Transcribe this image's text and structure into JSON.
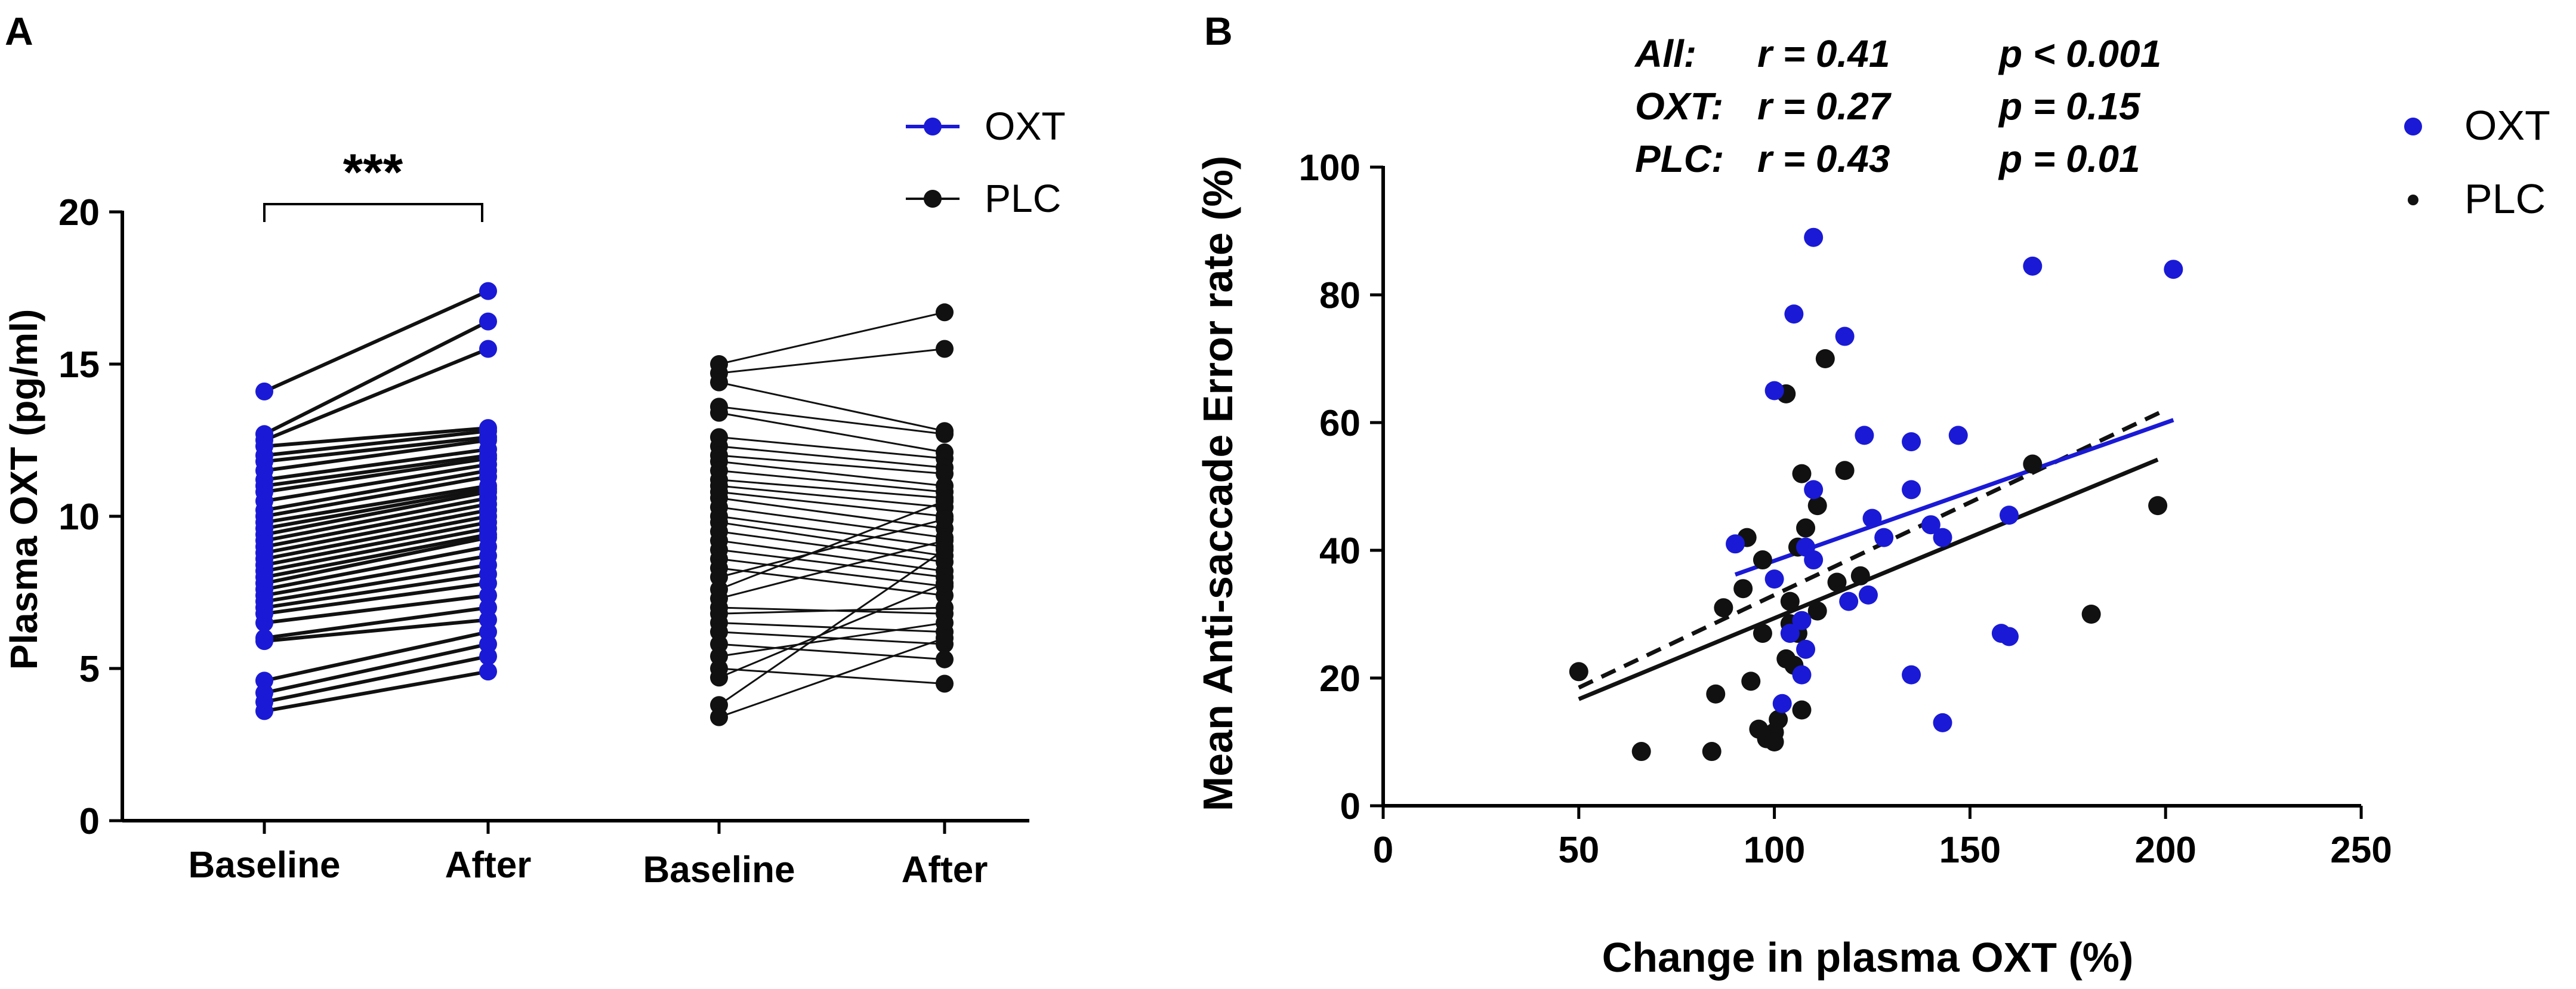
{
  "figure": {
    "colors": {
      "oxt": "#1a1ad6",
      "plc": "#111111",
      "axis": "#000000"
    }
  },
  "chart_data": [
    {
      "type": "line",
      "panel": "A",
      "ylabel": "Plasma OXT (pg/ml)",
      "ylim": [
        0,
        20
      ],
      "yticks": [
        0,
        5,
        10,
        15,
        20
      ],
      "categories": [
        "Baseline",
        "After",
        "Baseline",
        "After"
      ],
      "significance": "***",
      "legend": [
        {
          "name": "OXT",
          "color": "#1a1ad6"
        },
        {
          "name": "PLC",
          "color": "#111111"
        }
      ],
      "series": [
        {
          "name": "OXT",
          "pairs": [
            [
              14.1,
              17.4
            ],
            [
              12.7,
              16.4
            ],
            [
              12.5,
              15.5
            ],
            [
              12.3,
              12.9
            ],
            [
              12.0,
              12.8
            ],
            [
              11.8,
              12.6
            ],
            [
              11.5,
              12.5
            ],
            [
              11.2,
              12.2
            ],
            [
              11.0,
              12.0
            ],
            [
              10.8,
              11.9
            ],
            [
              10.5,
              11.7
            ],
            [
              10.2,
              11.5
            ],
            [
              10.0,
              11.3
            ],
            [
              9.8,
              11.0
            ],
            [
              9.6,
              10.9
            ],
            [
              9.4,
              10.8
            ],
            [
              9.2,
              10.6
            ],
            [
              9.0,
              10.4
            ],
            [
              8.8,
              10.2
            ],
            [
              8.6,
              10.0
            ],
            [
              8.4,
              9.8
            ],
            [
              8.2,
              9.6
            ],
            [
              8.0,
              9.4
            ],
            [
              7.8,
              9.3
            ],
            [
              7.6,
              9.0
            ],
            [
              7.4,
              8.7
            ],
            [
              7.2,
              8.4
            ],
            [
              7.0,
              8.1
            ],
            [
              6.8,
              7.8
            ],
            [
              6.5,
              7.4
            ],
            [
              6.0,
              7.0
            ],
            [
              5.9,
              6.6
            ],
            [
              4.6,
              6.2
            ],
            [
              4.2,
              5.8
            ],
            [
              3.9,
              5.4
            ],
            [
              3.6,
              4.9
            ]
          ]
        },
        {
          "name": "PLC",
          "pairs": [
            [
              15.0,
              16.7
            ],
            [
              14.7,
              15.5
            ],
            [
              14.4,
              12.8
            ],
            [
              13.6,
              12.7
            ],
            [
              13.4,
              12.1
            ],
            [
              12.6,
              11.9
            ],
            [
              12.3,
              11.6
            ],
            [
              12.0,
              11.4
            ],
            [
              11.8,
              11.0
            ],
            [
              11.5,
              10.8
            ],
            [
              11.2,
              10.6
            ],
            [
              11.0,
              10.3
            ],
            [
              10.8,
              10.0
            ],
            [
              10.6,
              9.6
            ],
            [
              10.3,
              9.3
            ],
            [
              10.0,
              9.0
            ],
            [
              9.8,
              8.7
            ],
            [
              9.5,
              8.5
            ],
            [
              9.2,
              8.2
            ],
            [
              8.9,
              8.0
            ],
            [
              8.6,
              7.7
            ],
            [
              8.3,
              7.4
            ],
            [
              8.0,
              9.9
            ],
            [
              7.6,
              10.5
            ],
            [
              7.3,
              9.2
            ],
            [
              7.0,
              6.8
            ],
            [
              6.8,
              7.0
            ],
            [
              6.5,
              6.2
            ],
            [
              6.2,
              5.8
            ],
            [
              5.8,
              5.3
            ],
            [
              5.4,
              6.5
            ],
            [
              5.0,
              4.5
            ],
            [
              4.7,
              7.8
            ],
            [
              3.8,
              8.9
            ],
            [
              3.4,
              6.0
            ]
          ]
        }
      ]
    },
    {
      "type": "scatter",
      "panel": "B",
      "xlabel": "Change in plasma OXT (%)",
      "ylabel": "Mean Anti-saccade Error rate (%)",
      "xlim": [
        0,
        250
      ],
      "ylim": [
        0,
        100
      ],
      "xticks": [
        0,
        50,
        100,
        150,
        200,
        250
      ],
      "yticks": [
        0,
        20,
        40,
        60,
        80,
        100
      ],
      "legend": [
        {
          "name": "OXT",
          "color": "#1a1ad6"
        },
        {
          "name": "PLC",
          "color": "#111111"
        }
      ],
      "stats": [
        {
          "label": "All:",
          "r": "r = 0.41",
          "p": "p < 0.001"
        },
        {
          "label": "OXT:",
          "r": "r = 0.27",
          "p": "p = 0.15"
        },
        {
          "label": "PLC:",
          "r": "r = 0.43",
          "p": "p = 0.01"
        }
      ],
      "series": [
        {
          "name": "OXT",
          "points": [
            [
              110,
              89
            ],
            [
              166,
              84.5
            ],
            [
              202,
              84
            ],
            [
              105,
              77
            ],
            [
              118,
              73.5
            ],
            [
              100,
              65
            ],
            [
              123,
              58
            ],
            [
              135,
              57
            ],
            [
              147,
              58
            ],
            [
              110,
              49.5
            ],
            [
              135,
              49.5
            ],
            [
              160,
              45.5
            ],
            [
              125,
              45
            ],
            [
              140,
              44
            ],
            [
              128,
              42
            ],
            [
              90,
              41
            ],
            [
              143,
              42
            ],
            [
              108,
              40.5
            ],
            [
              110,
              38.5
            ],
            [
              100,
              35.5
            ],
            [
              124,
              33
            ],
            [
              119,
              32
            ],
            [
              107,
              29
            ],
            [
              104,
              27
            ],
            [
              158,
              27
            ],
            [
              160,
              26.5
            ],
            [
              108,
              24.5
            ],
            [
              135,
              20.5
            ],
            [
              107,
              20.5
            ],
            [
              102,
              16
            ],
            [
              143,
              13
            ]
          ],
          "fit": {
            "x": [
              90,
              202
            ],
            "y": [
              36.2,
              60.4
            ]
          }
        },
        {
          "name": "PLC",
          "points": [
            [
              113,
              70
            ],
            [
              103,
              64.5
            ],
            [
              166,
              53.5
            ],
            [
              107,
              52
            ],
            [
              118,
              52.5
            ],
            [
              111,
              47
            ],
            [
              108,
              43.5
            ],
            [
              93,
              42
            ],
            [
              106,
              40.5
            ],
            [
              97,
              38.5
            ],
            [
              122,
              36
            ],
            [
              92,
              34
            ],
            [
              116,
              35
            ],
            [
              104,
              32
            ],
            [
              87,
              31
            ],
            [
              111,
              30.5
            ],
            [
              181,
              30
            ],
            [
              104,
              28.5
            ],
            [
              106,
              27
            ],
            [
              97,
              27
            ],
            [
              103,
              23
            ],
            [
              105,
              22
            ],
            [
              94,
              19.5
            ],
            [
              85,
              17.5
            ],
            [
              107,
              15
            ],
            [
              101,
              13.5
            ],
            [
              96,
              12
            ],
            [
              100,
              11.5
            ],
            [
              98,
              10.5
            ],
            [
              100,
              10
            ],
            [
              66,
              8.5
            ],
            [
              84,
              8.5
            ],
            [
              50,
              21
            ],
            [
              198,
              47
            ]
          ],
          "fit": {
            "x": [
              50,
              198
            ],
            "y": [
              16.7,
              54.2
            ]
          }
        }
      ],
      "overall_fit": {
        "x": [
          50,
          200
        ],
        "y": [
          18.5,
          62
        ]
      }
    }
  ]
}
